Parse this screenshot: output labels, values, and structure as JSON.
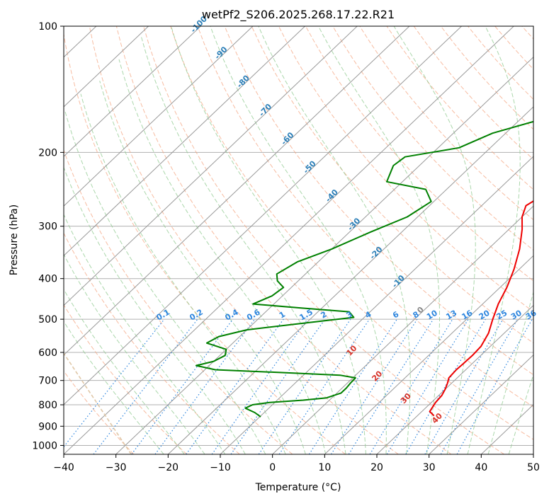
{
  "chart_data": {
    "type": "line",
    "diagram": "skew-T log-P",
    "title": "wetPf2_S206.2025.268.17.22.R21",
    "xlabel": "Temperature (°C)",
    "ylabel": "Pressure (hPa)",
    "xlim": [
      -40,
      50
    ],
    "ylim": [
      1050,
      100
    ],
    "x_ticks": [
      -40,
      -30,
      -20,
      -10,
      0,
      10,
      20,
      30,
      40,
      50
    ],
    "x_tick_labels": [
      "−40",
      "−30",
      "−20",
      "−10",
      "0",
      "10",
      "20",
      "30",
      "40",
      "50"
    ],
    "y_ticks": [
      100,
      200,
      300,
      400,
      500,
      600,
      700,
      800,
      900,
      1000
    ],
    "y_tick_labels": [
      "100",
      "200",
      "300",
      "400",
      "500",
      "600",
      "700",
      "800",
      "900",
      "1000"
    ],
    "grid": true,
    "colors": {
      "temperature": "#ee0000",
      "dewpoint": "#008000",
      "isotherm": "#999999",
      "dry_adiabat": "#f4a582",
      "moist_adiabat": "#8fc98f",
      "mixing_ratio": "#2e86de",
      "isotherm_label": "#2c7fb8",
      "adiabat_label": "#d73027",
      "mixing_label": "#2e86de",
      "lcl_curve": "#e0c8a8"
    },
    "series": [
      {
        "name": "Temperature",
        "color": "#ee0000",
        "points": [
          [
            850,
            23.2
          ],
          [
            830,
            21.5
          ],
          [
            790,
            20.8
          ],
          [
            760,
            20.6
          ],
          [
            735,
            20.0
          ],
          [
            710,
            19.2
          ],
          [
            690,
            18.4
          ],
          [
            660,
            18.2
          ],
          [
            640,
            18.3
          ],
          [
            610,
            18.4
          ],
          [
            580,
            18.2
          ],
          [
            540,
            17.0
          ],
          [
            500,
            15.0
          ],
          [
            460,
            13.0
          ],
          [
            420,
            11.3
          ],
          [
            380,
            9.0
          ],
          [
            340,
            6.0
          ],
          [
            305,
            2.5
          ],
          [
            285,
            0.0
          ],
          [
            268,
            -1.5
          ],
          [
            255,
            -0.5
          ],
          [
            240,
            4.0
          ],
          [
            225,
            8.5
          ],
          [
            212,
            10.8
          ],
          [
            200,
            12.0
          ],
          [
            185,
            11.0
          ],
          [
            170,
            8.0
          ],
          [
            155,
            6.5
          ],
          [
            145,
            6.2
          ],
          [
            135,
            6.5
          ],
          [
            125,
            6.5
          ],
          [
            115,
            5.5
          ],
          [
            108,
            5.6
          ],
          [
            102,
            6.2
          ],
          [
            100,
            6.5
          ]
        ]
      },
      {
        "name": "Dewpoint",
        "color": "#008000",
        "points": [
          [
            855,
            -9.8
          ],
          [
            835,
            -11.8
          ],
          [
            815,
            -14.5
          ],
          [
            800,
            -13.8
          ],
          [
            790,
            -11.0
          ],
          [
            780,
            -5.0
          ],
          [
            770,
            -1.0
          ],
          [
            750,
            0.8
          ],
          [
            730,
            0.8
          ],
          [
            710,
            0.6
          ],
          [
            690,
            0.5
          ],
          [
            680,
            -3.0
          ],
          [
            670,
            -15.0
          ],
          [
            660,
            -28.0
          ],
          [
            645,
            -32.5
          ],
          [
            630,
            -30.0
          ],
          [
            610,
            -29.0
          ],
          [
            590,
            -30.0
          ],
          [
            570,
            -35.0
          ],
          [
            550,
            -34.0
          ],
          [
            530,
            -30.0
          ],
          [
            510,
            -20.0
          ],
          [
            495,
            -12.0
          ],
          [
            480,
            -14.0
          ],
          [
            470,
            -24.0
          ],
          [
            460,
            -34.0
          ],
          [
            440,
            -32.0
          ],
          [
            420,
            -31.5
          ],
          [
            405,
            -34.0
          ],
          [
            390,
            -35.5
          ],
          [
            365,
            -34.0
          ],
          [
            340,
            -30.0
          ],
          [
            310,
            -26.0
          ],
          [
            285,
            -22.0
          ],
          [
            262,
            -20.5
          ],
          [
            245,
            -24.0
          ],
          [
            235,
            -33.0
          ],
          [
            215,
            -35.0
          ],
          [
            205,
            -34.5
          ],
          [
            195,
            -26.0
          ],
          [
            180,
            -22.5
          ],
          [
            165,
            -15.0
          ],
          [
            145,
            -9.0
          ],
          [
            125,
            -5.0
          ],
          [
            112,
            0.0
          ],
          [
            105,
            2.5
          ],
          [
            100,
            4.0
          ]
        ]
      }
    ],
    "isotherm_labels": [
      -100,
      -90,
      -80,
      -70,
      -60,
      -50,
      -40,
      -30,
      -20,
      -10,
      0
    ],
    "isotherm_label_texts": [
      "-100",
      "-90",
      "-80",
      "-70",
      "-60",
      "-50",
      "-40",
      "-30",
      "-20",
      "-10",
      "0"
    ],
    "dry_adiabat_labels": [
      10,
      20,
      30,
      40
    ],
    "dry_adiabat_label_texts": [
      "10",
      "20",
      "30",
      "40"
    ],
    "mixing_ratio_labels": [
      0.1,
      0.2,
      0.4,
      0.6,
      1,
      1.5,
      2,
      3,
      4,
      6,
      8,
      10,
      13,
      16,
      20,
      25,
      30,
      36
    ],
    "mixing_ratio_label_texts": [
      "0.1",
      "0.2",
      "0.4",
      "0.6",
      "1",
      "1.5",
      "2",
      "3",
      "4",
      "6",
      "8",
      "10",
      "13",
      "16",
      "20",
      "25",
      "30",
      "36"
    ]
  }
}
